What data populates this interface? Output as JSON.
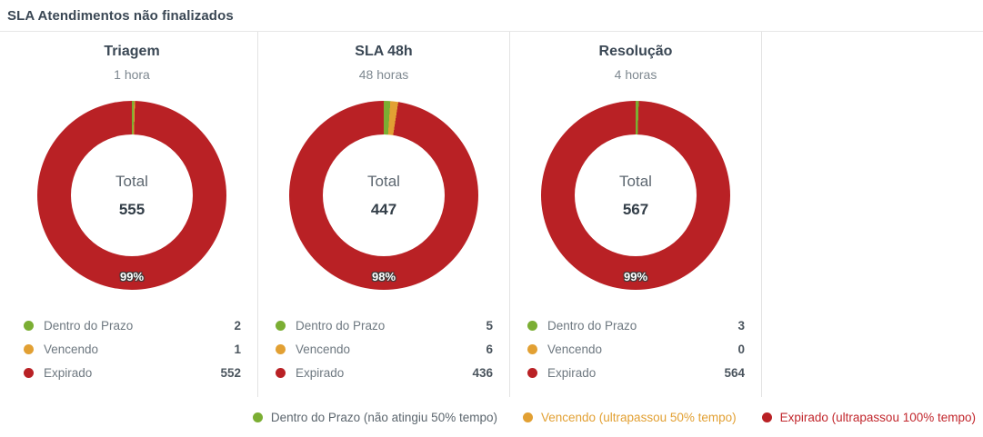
{
  "page": {
    "title": "SLA Atendimentos não finalizados"
  },
  "colors": {
    "green": "#7bae33",
    "orange": "#e2a033",
    "red": "#b92125"
  },
  "charts": [
    {
      "title": "Triagem",
      "subtitle": "1 hora",
      "total_label": "Total",
      "total": "555",
      "percent": "99%",
      "slices": {
        "green": 2,
        "orange": 1,
        "red": 552
      },
      "legend": [
        {
          "label": "Dentro do Prazo",
          "value": "2",
          "color": "green"
        },
        {
          "label": "Vencendo",
          "value": "1",
          "color": "orange"
        },
        {
          "label": "Expirado",
          "value": "552",
          "color": "red"
        }
      ]
    },
    {
      "title": "SLA 48h",
      "subtitle": "48 horas",
      "total_label": "Total",
      "total": "447",
      "percent": "98%",
      "slices": {
        "green": 5,
        "orange": 6,
        "red": 436
      },
      "legend": [
        {
          "label": "Dentro do Prazo",
          "value": "5",
          "color": "green"
        },
        {
          "label": "Vencendo",
          "value": "6",
          "color": "orange"
        },
        {
          "label": "Expirado",
          "value": "436",
          "color": "red"
        }
      ]
    },
    {
      "title": "Resolução",
      "subtitle": "4 horas",
      "total_label": "Total",
      "total": "567",
      "percent": "99%",
      "slices": {
        "green": 3,
        "orange": 0,
        "red": 564
      },
      "legend": [
        {
          "label": "Dentro do Prazo",
          "value": "3",
          "color": "green"
        },
        {
          "label": "Vencendo",
          "value": "0",
          "color": "orange"
        },
        {
          "label": "Expirado",
          "value": "564",
          "color": "red"
        }
      ]
    }
  ],
  "footer_legend": [
    {
      "label": "Dentro do Prazo (não atingiu 50% tempo)",
      "dot": "green",
      "text_color": "#5c666e"
    },
    {
      "label": "Vencendo (ultrapassou 50% tempo)",
      "dot": "orange",
      "text_color": "#e2a033"
    },
    {
      "label": "Expirado (ultrapassou 100% tempo)",
      "dot": "red",
      "text_color": "#c2272d"
    }
  ],
  "chart_data": [
    {
      "type": "pie",
      "donut": true,
      "title": "Triagem",
      "subtitle": "1 hora",
      "center_label": "Total",
      "center_value": 555,
      "percent_label": "99%",
      "categories": [
        "Dentro do Prazo",
        "Vencendo",
        "Expirado"
      ],
      "values": [
        2,
        1,
        552
      ],
      "colors": [
        "#7bae33",
        "#e2a033",
        "#b92125"
      ],
      "legend_position": "bottom-left-list"
    },
    {
      "type": "pie",
      "donut": true,
      "title": "SLA 48h",
      "subtitle": "48 horas",
      "center_label": "Total",
      "center_value": 447,
      "percent_label": "98%",
      "categories": [
        "Dentro do Prazo",
        "Vencendo",
        "Expirado"
      ],
      "values": [
        5,
        6,
        436
      ],
      "colors": [
        "#7bae33",
        "#e2a033",
        "#b92125"
      ],
      "legend_position": "bottom-left-list"
    },
    {
      "type": "pie",
      "donut": true,
      "title": "Resolução",
      "subtitle": "4 horas",
      "center_label": "Total",
      "center_value": 567,
      "percent_label": "99%",
      "categories": [
        "Dentro do Prazo",
        "Vencendo",
        "Expirado"
      ],
      "values": [
        3,
        0,
        564
      ],
      "colors": [
        "#7bae33",
        "#e2a033",
        "#b92125"
      ],
      "legend_position": "bottom-left-list"
    }
  ]
}
